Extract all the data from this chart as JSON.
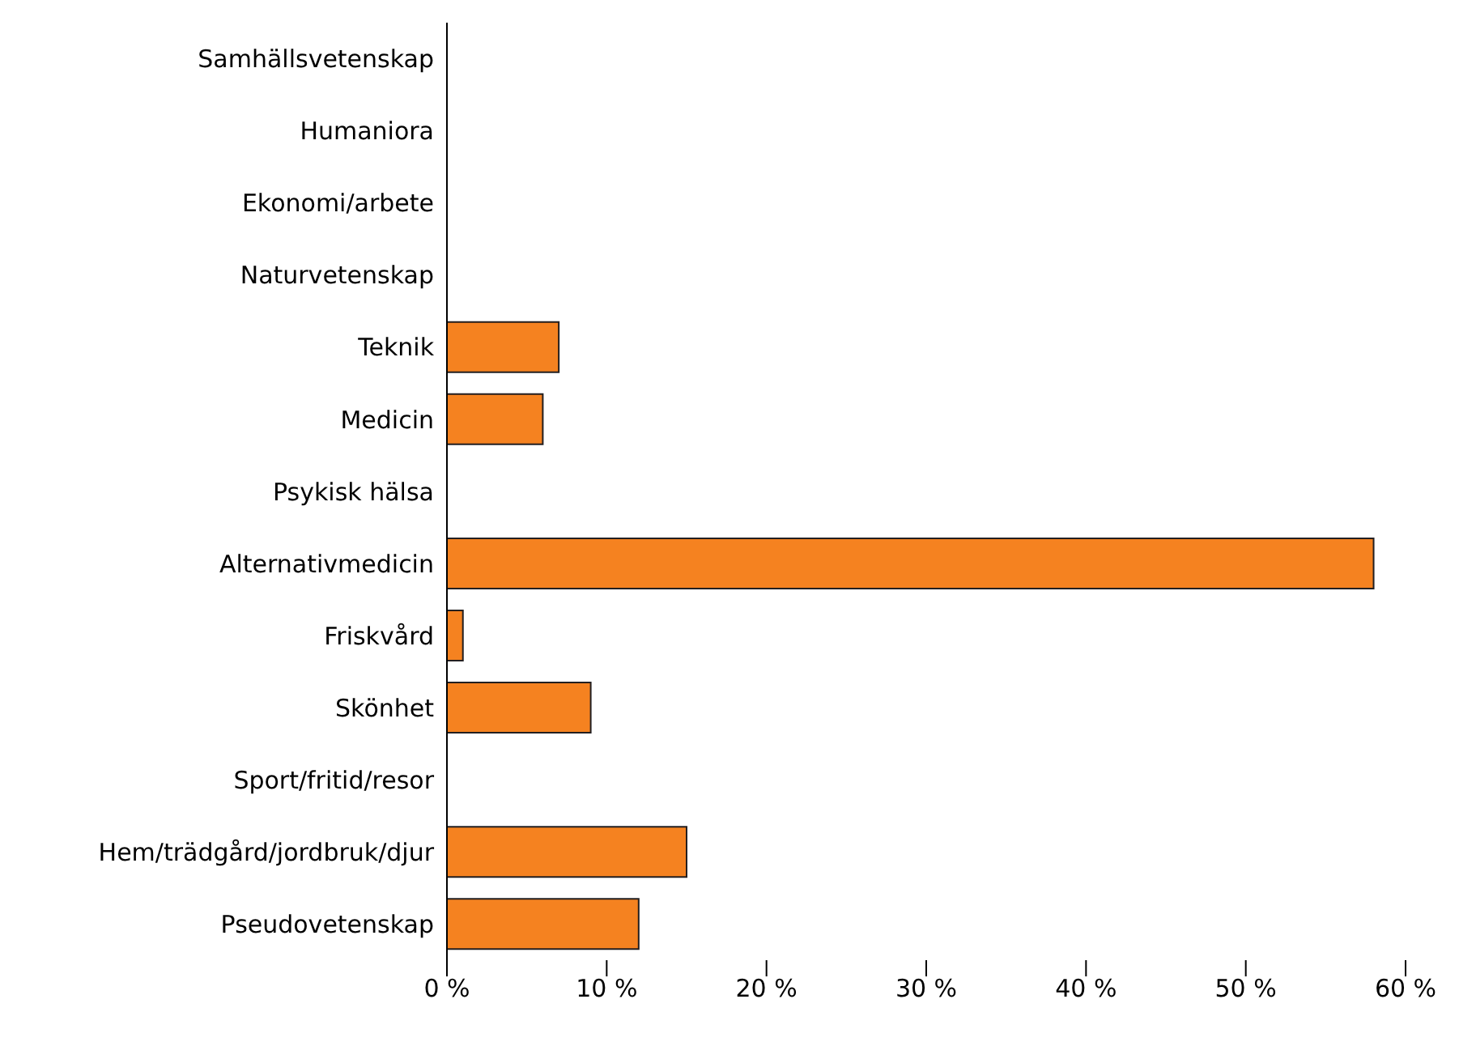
{
  "chart_data": {
    "type": "bar",
    "orientation": "horizontal",
    "categories": [
      "Samhällsvetenskap",
      "Humaniora",
      "Ekonomi/arbete",
      "Naturvetenskap",
      "Teknik",
      "Medicin",
      "Psykisk hälsa",
      "Alternativmedicin",
      "Friskvård",
      "Skönhet",
      "Sport/fritid/resor",
      "Hem/trädgård/jordbruk/djur",
      "Pseudovetenskap"
    ],
    "values": [
      0,
      0,
      0,
      0,
      7,
      6,
      0,
      58,
      1,
      9,
      0,
      15,
      12
    ],
    "color": "#f58220",
    "xlim": [
      0,
      60
    ],
    "xticks": [
      {
        "value": 0,
        "label": "0 %"
      },
      {
        "value": 10,
        "label": "10 %"
      },
      {
        "value": 20,
        "label": "20 %"
      },
      {
        "value": 30,
        "label": "30 %"
      },
      {
        "value": 40,
        "label": "40 %"
      },
      {
        "value": 50,
        "label": "50 %"
      },
      {
        "value": 60,
        "label": "60 %"
      }
    ],
    "grid": false,
    "legend": false
  }
}
